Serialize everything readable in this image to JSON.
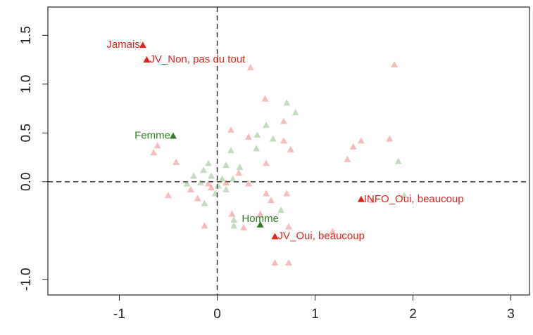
{
  "chart_data": {
    "type": "scatter",
    "xlim": [
      -1.73,
      3.19
    ],
    "ylim": [
      -1.16,
      1.79
    ],
    "xticks": [
      -1,
      0,
      1,
      2,
      3
    ],
    "yticks": [
      {
        "value": -1,
        "label": "-1.0"
      },
      {
        "value": 0,
        "label": "0.0"
      },
      0.5,
      {
        "value": 1,
        "label": "1.0"
      },
      1.5
    ],
    "hlines": [
      0
    ],
    "vlines": [
      0
    ],
    "series": [
      {
        "color": "#e0241c",
        "opacity": 1,
        "x": [
          -0.76,
          -0.72,
          0.59,
          1.47
        ],
        "y": [
          1.4,
          1.25,
          -0.56,
          -0.18
        ],
        "labels": [
          "Jamais",
          "JV_Non, pas du tout",
          "JV_Oui, beaucoup",
          "INFO_Oui, beaucoup"
        ]
      },
      {
        "color": "#2e7d22",
        "opacity": 1,
        "x": [
          -0.45,
          0.44
        ],
        "y": [
          0.47,
          -0.44
        ],
        "labels": [
          "Femme",
          "Homme"
        ]
      },
      {
        "color": "#ee6a6a",
        "opacity": 0.45,
        "x": [
          0.34,
          1.81,
          0.49,
          0.14,
          0.32,
          0.68,
          0.68,
          0.75,
          -0.61,
          -0.65,
          1.76,
          1.47,
          1.39,
          1.33,
          0.5,
          0.22,
          -0.42,
          -0.5,
          -0.27,
          -0.13,
          -0.2,
          -0.06,
          0.32,
          0.5,
          0.55,
          0.71,
          0.15,
          0.44,
          0.27,
          0.73,
          1.18,
          0.59,
          0.73,
          1.58,
          0.09,
          -0.09
        ],
        "y": [
          1.17,
          1.2,
          0.85,
          0.53,
          0.46,
          0.62,
          0.42,
          0.33,
          0.37,
          0.3,
          0.44,
          0.42,
          0.36,
          0.23,
          0.19,
          0.09,
          0.2,
          -0.14,
          -0.08,
          -0.45,
          -0.17,
          -0.06,
          -0.02,
          -0.12,
          -0.19,
          -0.12,
          -0.33,
          -0.33,
          -0.47,
          -0.46,
          -0.51,
          -0.83,
          -0.83,
          -0.19,
          -0.01,
          -0.02
        ]
      },
      {
        "color": "#6aa860",
        "opacity": 0.4,
        "x": [
          0.71,
          0.8,
          0.5,
          0.57,
          0.41,
          0.4,
          0.14,
          0.09,
          -0.09,
          -0.14,
          -0.24,
          -0.31,
          -0.06,
          0.05,
          0.16,
          0.23,
          1.85,
          1.91,
          0.17,
          0.17,
          0.65,
          -0.13,
          -0.02,
          -0.17,
          0.09,
          0.01
        ],
        "y": [
          0.81,
          0.71,
          0.58,
          0.44,
          0.48,
          0.34,
          0.32,
          0.17,
          0.19,
          0.12,
          0.06,
          -0.02,
          0.06,
          0.03,
          0.03,
          0.15,
          0.21,
          -0.14,
          -0.39,
          -0.45,
          -0.29,
          -0.22,
          -0.12,
          -0.01,
          -0.08,
          -0.04
        ]
      }
    ]
  }
}
